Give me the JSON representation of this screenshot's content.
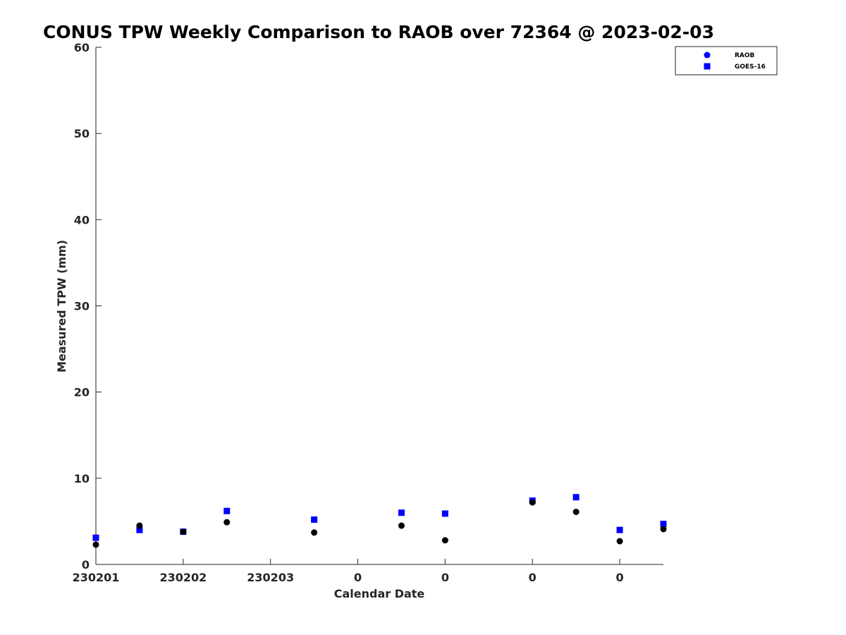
{
  "chart_data": {
    "type": "scatter",
    "title": "CONUS TPW Weekly Comparison to RAOB over 72364 @ 2023-02-03",
    "xlabel": "Calendar Date",
    "ylabel": "Measured TPW (mm)",
    "ylim": [
      0,
      60
    ],
    "yticks": [
      0,
      10,
      20,
      30,
      40,
      50,
      60
    ],
    "xlim": [
      0,
      6.5
    ],
    "xticks": [
      {
        "pos": 0,
        "label": "230201"
      },
      {
        "pos": 1,
        "label": "230202"
      },
      {
        "pos": 2,
        "label": "230203"
      },
      {
        "pos": 3,
        "label": "0"
      },
      {
        "pos": 4,
        "label": "0"
      },
      {
        "pos": 5,
        "label": "0"
      },
      {
        "pos": 6,
        "label": "0"
      }
    ],
    "grid": false,
    "legend_position": "top-right",
    "series": [
      {
        "name": "RAOB",
        "marker": "circle",
        "color": "#000000",
        "legend_color": "#0000ff",
        "x": [
          0,
          0.5,
          1,
          1.5,
          2.5,
          3.5,
          4,
          5,
          5.5,
          6,
          6.5
        ],
        "y": [
          2.3,
          4.5,
          3.8,
          4.9,
          3.7,
          4.5,
          2.8,
          7.2,
          6.1,
          2.7,
          4.1
        ]
      },
      {
        "name": "GOES-16",
        "marker": "square",
        "color": "#0000ff",
        "x": [
          0,
          0.5,
          1,
          1.5,
          2.5,
          3.5,
          4,
          5,
          5.5,
          6,
          6.5
        ],
        "y": [
          3.1,
          4.0,
          3.8,
          6.2,
          5.2,
          6.0,
          5.9,
          7.4,
          7.8,
          4.0,
          4.7
        ]
      }
    ]
  }
}
